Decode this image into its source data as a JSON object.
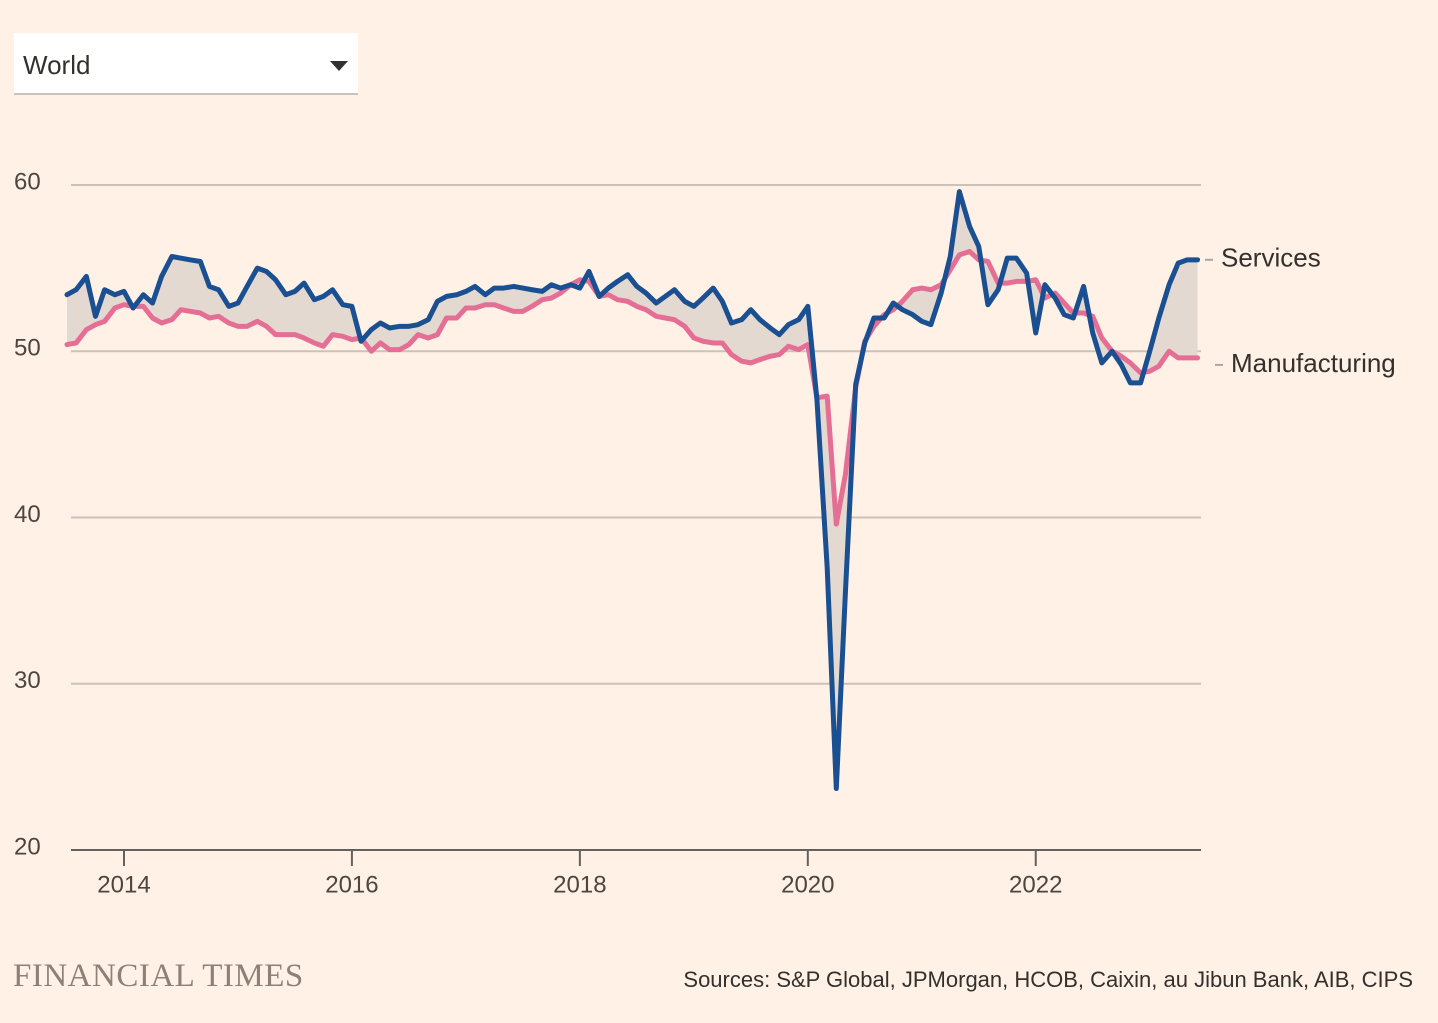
{
  "dropdown": {
    "label": "World"
  },
  "brand": "FINANCIAL TIMES",
  "chart_data": {
    "type": "line",
    "source": "Sources: S&P Global, JPMorgan, HCOB, Caixin, au Jibun Bank, AIB, CIPS",
    "x": [
      2013.5,
      2013.58,
      2013.67,
      2013.75,
      2013.83,
      2013.92,
      2014,
      2014.08,
      2014.17,
      2014.25,
      2014.33,
      2014.42,
      2014.5,
      2014.58,
      2014.67,
      2014.75,
      2014.83,
      2014.92,
      2015,
      2015.08,
      2015.17,
      2015.25,
      2015.33,
      2015.42,
      2015.5,
      2015.58,
      2015.67,
      2015.75,
      2015.83,
      2015.92,
      2016,
      2016.08,
      2016.17,
      2016.25,
      2016.33,
      2016.42,
      2016.5,
      2016.58,
      2016.67,
      2016.75,
      2016.83,
      2016.92,
      2017,
      2017.08,
      2017.17,
      2017.25,
      2017.33,
      2017.42,
      2017.5,
      2017.58,
      2017.67,
      2017.75,
      2017.83,
      2017.92,
      2018,
      2018.08,
      2018.17,
      2018.25,
      2018.33,
      2018.42,
      2018.5,
      2018.58,
      2018.67,
      2018.75,
      2018.83,
      2018.92,
      2019,
      2019.08,
      2019.17,
      2019.25,
      2019.33,
      2019.42,
      2019.5,
      2019.58,
      2019.67,
      2019.75,
      2019.83,
      2019.92,
      2020,
      2020.08,
      2020.17,
      2020.25,
      2020.33,
      2020.42,
      2020.5,
      2020.58,
      2020.67,
      2020.75,
      2020.83,
      2020.92,
      2021,
      2021.08,
      2021.17,
      2021.25,
      2021.33,
      2021.42,
      2021.5,
      2021.58,
      2021.67,
      2021.75,
      2021.83,
      2021.92,
      2022,
      2022.08,
      2022.17,
      2022.25,
      2022.33,
      2022.42,
      2022.5,
      2022.58,
      2022.67,
      2022.75,
      2022.83,
      2022.92,
      2023,
      2023.08,
      2023.17,
      2023.25,
      2023.33,
      2023.42
    ],
    "xlim": [
      2013.5,
      2023.45
    ],
    "xticks": [
      2014,
      2016,
      2018,
      2020,
      2022
    ],
    "ylim": [
      20,
      60
    ],
    "yticks": [
      20,
      30,
      40,
      50,
      60
    ],
    "grid": true,
    "fill_between": true,
    "series": [
      {
        "name": "Services",
        "color": "#1a4f91",
        "values": [
          53.4,
          53.7,
          54.5,
          52.1,
          53.7,
          53.4,
          53.6,
          52.6,
          53.4,
          52.9,
          54.5,
          55.7,
          55.6,
          55.5,
          55.4,
          53.9,
          53.7,
          52.7,
          52.9,
          53.9,
          55.0,
          54.8,
          54.3,
          53.4,
          53.6,
          54.1,
          53.1,
          53.3,
          53.7,
          52.8,
          52.7,
          50.6,
          51.3,
          51.7,
          51.4,
          51.5,
          51.5,
          51.6,
          51.9,
          53.0,
          53.3,
          53.4,
          53.6,
          53.9,
          53.4,
          53.8,
          53.8,
          53.9,
          53.8,
          53.7,
          53.6,
          54.0,
          53.8,
          54.0,
          53.8,
          54.8,
          53.3,
          53.8,
          54.2,
          54.6,
          53.9,
          53.5,
          52.9,
          53.3,
          53.7,
          53.0,
          52.7,
          53.2,
          53.8,
          53.0,
          51.7,
          51.9,
          52.5,
          51.9,
          51.4,
          51.0,
          51.6,
          51.9,
          52.7,
          47.1,
          37.0,
          23.7,
          35.5,
          48.0,
          50.5,
          52.0,
          52.0,
          52.9,
          52.5,
          52.2,
          51.8,
          51.6,
          53.5,
          55.7,
          59.6,
          57.5,
          56.3,
          52.8,
          53.7,
          55.6,
          55.6,
          54.7,
          51.1,
          54.0,
          53.2,
          52.2,
          52.0,
          53.9,
          51.1,
          49.3,
          50.0,
          49.2,
          48.1,
          48.1,
          50.0,
          52.0,
          54.0,
          55.3,
          55.5,
          55.5
        ]
      },
      {
        "name": "Manufacturing",
        "color": "#e46e94",
        "values": [
          50.4,
          50.5,
          51.3,
          51.6,
          51.8,
          52.6,
          52.8,
          52.7,
          52.7,
          52.0,
          51.7,
          51.9,
          52.5,
          52.4,
          52.3,
          52.0,
          52.1,
          51.7,
          51.5,
          51.5,
          51.8,
          51.5,
          51.0,
          51.0,
          51.0,
          50.8,
          50.5,
          50.3,
          51.0,
          50.9,
          50.7,
          50.8,
          50.0,
          50.5,
          50.1,
          50.1,
          50.4,
          51.0,
          50.8,
          51.0,
          52.0,
          52.0,
          52.6,
          52.6,
          52.8,
          52.8,
          52.6,
          52.4,
          52.4,
          52.7,
          53.1,
          53.2,
          53.5,
          54.0,
          54.3,
          54.2,
          53.3,
          53.4,
          53.1,
          53.0,
          52.7,
          52.5,
          52.1,
          52.0,
          51.9,
          51.5,
          50.8,
          50.6,
          50.5,
          50.5,
          49.8,
          49.4,
          49.3,
          49.5,
          49.7,
          49.8,
          50.3,
          50.1,
          50.4,
          47.2,
          47.3,
          39.6,
          42.6,
          47.8,
          50.6,
          51.5,
          52.2,
          52.5,
          53.0,
          53.7,
          53.8,
          53.7,
          54.0,
          54.9,
          55.8,
          56.0,
          55.5,
          55.4,
          54.1,
          54.1,
          54.2,
          54.2,
          54.3,
          53.2,
          53.5,
          52.9,
          52.3,
          52.3,
          52.1,
          50.8,
          50.0,
          49.7,
          49.3,
          48.7,
          48.8,
          49.1,
          50.0,
          49.6,
          49.6,
          49.6
        ]
      }
    ]
  }
}
